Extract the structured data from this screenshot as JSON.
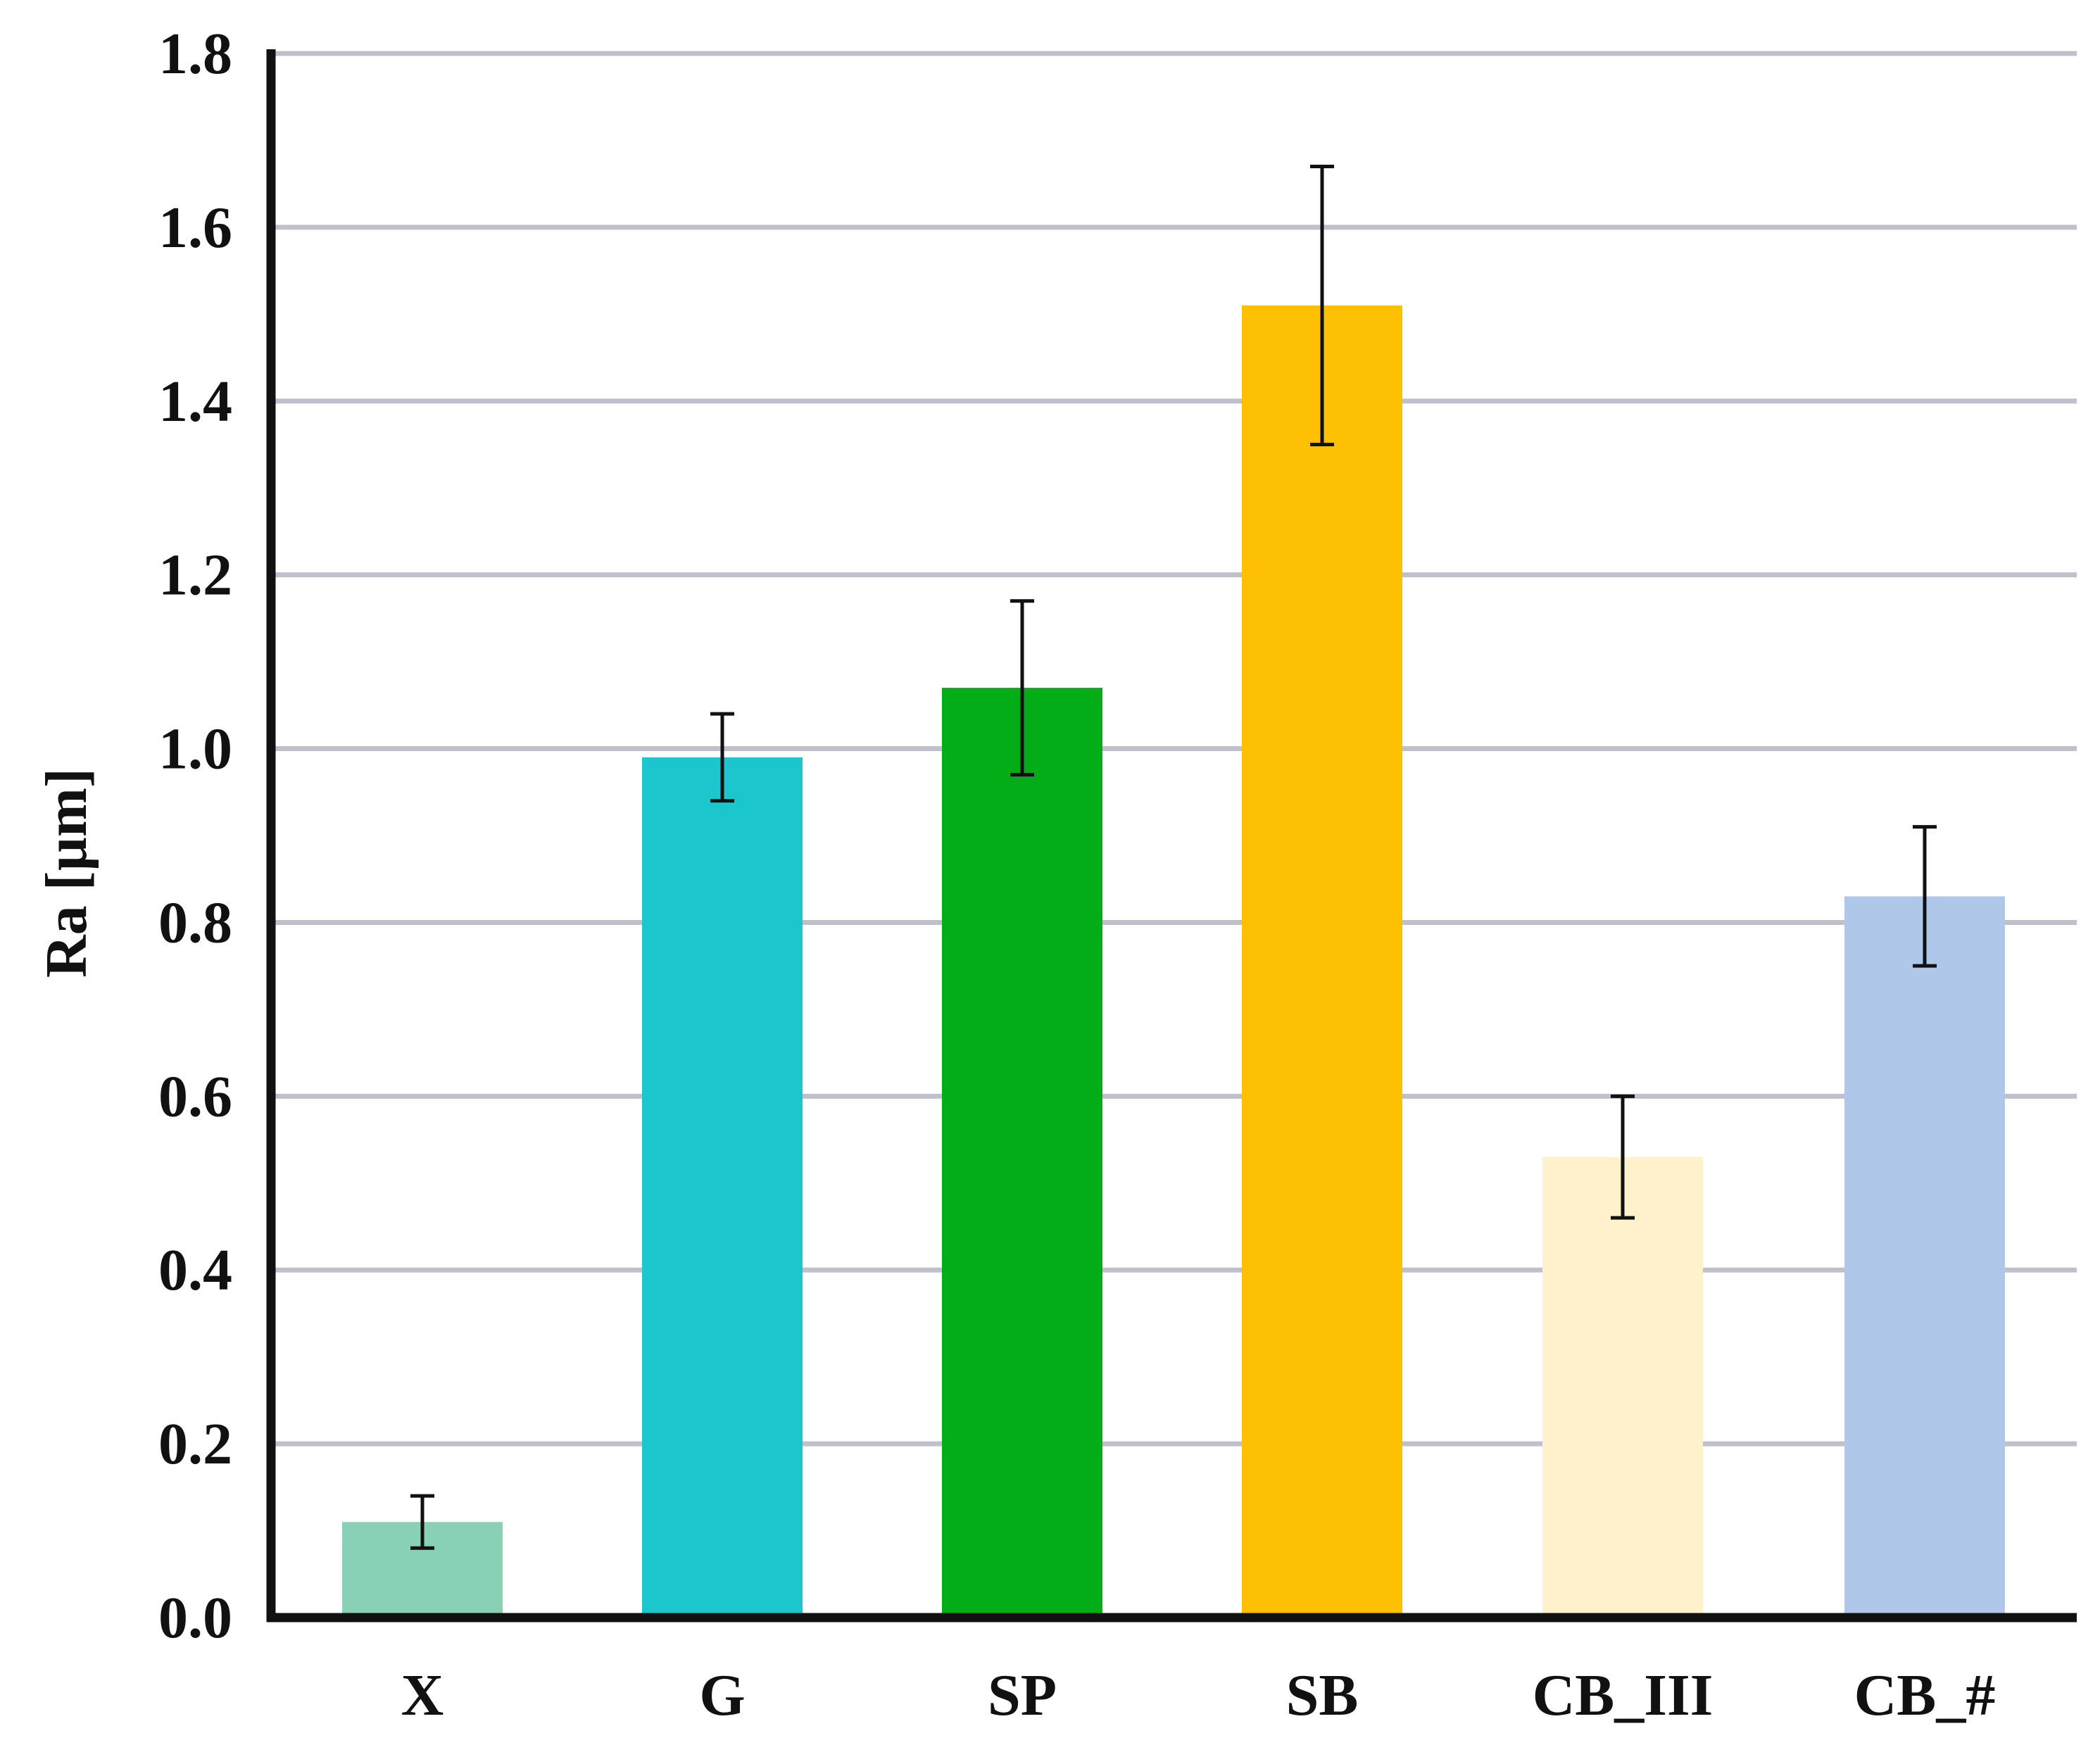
{
  "chart_data": {
    "type": "bar",
    "title": "",
    "xlabel": "",
    "ylabel": "Ra [µm]",
    "ylim": [
      0,
      1.8
    ],
    "yticks": [
      0.0,
      0.2,
      0.4,
      0.6,
      0.8,
      1.0,
      1.2,
      1.4,
      1.6,
      1.8
    ],
    "ytick_labels": [
      "0.0",
      "0.2",
      "0.4",
      "0.6",
      "0.8",
      "1.0",
      "1.2",
      "1.4",
      "1.6",
      "1.8"
    ],
    "grid": true,
    "categories": [
      "X",
      "G",
      "SP",
      "SB",
      "CB_III",
      "CB_#"
    ],
    "values": [
      0.11,
      0.99,
      1.07,
      1.51,
      0.53,
      0.83
    ],
    "errors": [
      0.03,
      0.05,
      0.1,
      0.16,
      0.07,
      0.08
    ],
    "colors": [
      "#88d1b4",
      "#1bc6cc",
      "#02ad17",
      "#fdc002",
      "#fef1cc",
      "#afc8e9"
    ],
    "grid_color": "#c0c0cc",
    "axis_color": "#111111"
  }
}
